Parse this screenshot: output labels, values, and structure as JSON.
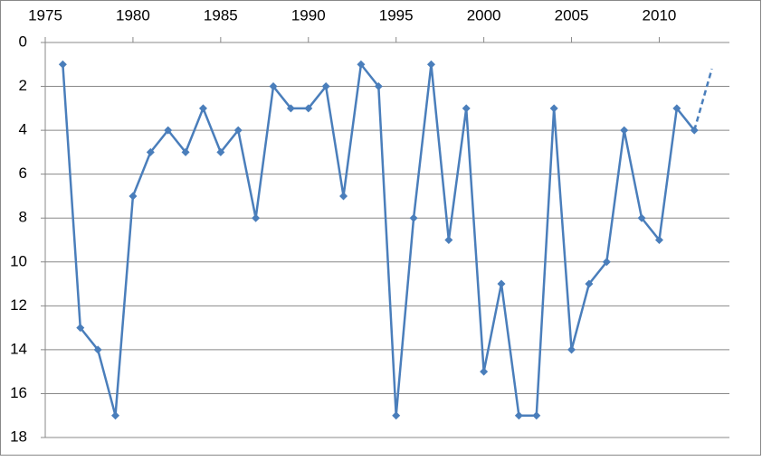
{
  "chart_data": {
    "type": "line",
    "x": [
      1976,
      1977,
      1978,
      1979,
      1980,
      1981,
      1982,
      1983,
      1984,
      1985,
      1986,
      1987,
      1988,
      1989,
      1990,
      1991,
      1992,
      1993,
      1994,
      1995,
      1996,
      1997,
      1998,
      1999,
      2000,
      2001,
      2002,
      2003,
      2004,
      2005,
      2006,
      2007,
      2008,
      2009,
      2010,
      2011,
      2012
    ],
    "series": [
      {
        "color": "#4a7ebb",
        "marker": "diamond",
        "dashed": false,
        "x": [
          1976,
          1977,
          1978,
          1979,
          1980,
          1981,
          1982,
          1983,
          1984,
          1985,
          1986,
          1987,
          1988,
          1989,
          1990,
          1991,
          1992,
          1993,
          1994,
          1995,
          1996,
          1997,
          1998,
          1999,
          2000,
          2001,
          2002,
          2003,
          2004,
          2005,
          2006,
          2007,
          2008,
          2009,
          2010,
          2011,
          2012
        ],
        "values": [
          1,
          13,
          14,
          17,
          7,
          5,
          4,
          5,
          3,
          5,
          4,
          8,
          2,
          3,
          3,
          2,
          7,
          1,
          2,
          17,
          8,
          1,
          9,
          3,
          15,
          11,
          17,
          17,
          3,
          14,
          11,
          10,
          4,
          8,
          9,
          3,
          4
        ]
      },
      {
        "color": "#4a7ebb",
        "marker": "none",
        "dashed": true,
        "x": [
          2012,
          2013
        ],
        "values": [
          4,
          1.2
        ]
      }
    ],
    "xlim": [
      1975,
      2014
    ],
    "xticks": [
      1975,
      1980,
      1985,
      1990,
      1995,
      2000,
      2005,
      2010
    ],
    "ylim": [
      0,
      18
    ],
    "yticks": [
      0,
      2,
      4,
      6,
      8,
      10,
      12,
      14,
      16,
      18
    ],
    "y_reversed": true,
    "x_axis_position": "top",
    "grid": true
  }
}
